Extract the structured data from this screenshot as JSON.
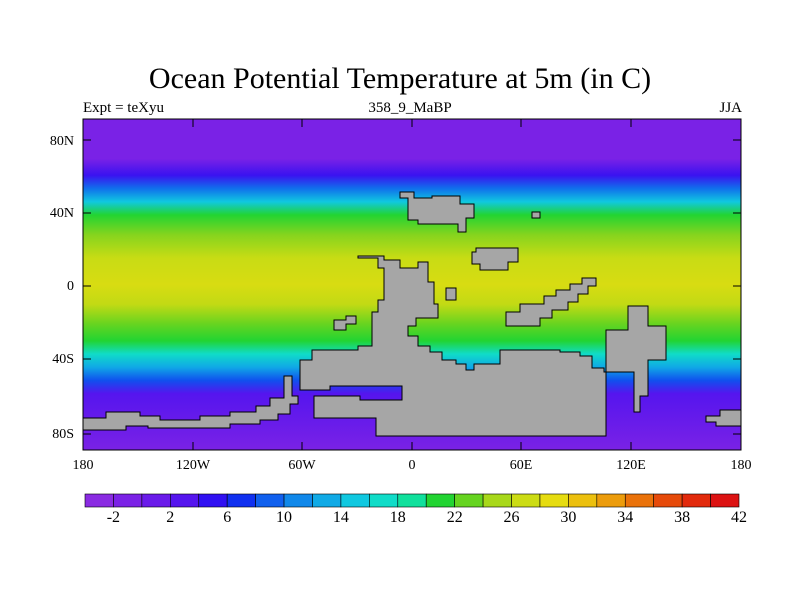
{
  "title": "Ocean Potential Temperature at 5m (in C)",
  "subtitle_left": "Expt = teXyu",
  "subtitle_center": "358_9_MaBP",
  "subtitle_right": "JJA",
  "lat_ticks": [
    "80N",
    "40N",
    "0",
    "40S",
    "80S"
  ],
  "lon_ticks": [
    "180",
    "120W",
    "60W",
    "0",
    "60E",
    "120E",
    "180"
  ],
  "colorbar": {
    "labels": [
      "-2",
      "2",
      "6",
      "10",
      "14",
      "18",
      "22",
      "26",
      "30",
      "34",
      "38",
      "42"
    ],
    "colors": [
      "#8a2be2",
      "#7b22e6",
      "#6a1bea",
      "#5515ee",
      "#3010f2",
      "#1030f0",
      "#1060ee",
      "#1088ea",
      "#10aae6",
      "#10c8e0",
      "#10dcc8",
      "#10e09c",
      "#22d432",
      "#66d420",
      "#a8d81a",
      "#ccdc14",
      "#e6dc10",
      "#ecc00e",
      "#ec9c0c",
      "#ea720a",
      "#e64a0a",
      "#e22a0c",
      "#dc1212"
    ]
  },
  "colors": {
    "land": "#a6a6a6",
    "coastline": "#000000"
  }
}
